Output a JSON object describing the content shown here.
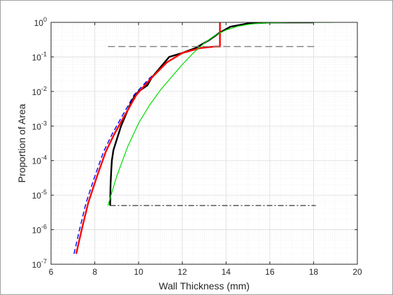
{
  "chart_data": {
    "type": "line",
    "title": "",
    "xlabel": "Wall Thickness (mm)",
    "ylabel": "Proportion of Area",
    "xlim": [
      6,
      20
    ],
    "ylim_log10": [
      -7,
      0
    ],
    "yscale": "log",
    "grid": true,
    "minor_grid": true,
    "legend": "none",
    "x_ticks": [
      "6",
      "8",
      "10",
      "12",
      "14",
      "16",
      "18",
      "20"
    ],
    "y_tick_bases": [
      "10",
      "10",
      "10",
      "10",
      "10",
      "10",
      "10",
      "10"
    ],
    "y_tick_exponents": [
      "-7",
      "-6",
      "-5",
      "-4",
      "-3",
      "-2",
      "-1",
      "0"
    ],
    "series": [
      {
        "color": "#0000ff",
        "style": "dashed",
        "points": [
          [
            7.05,
            2e-07
          ],
          [
            7.3,
            1e-06
          ],
          [
            7.6,
            6e-06
          ],
          [
            8.0,
            3.5e-05
          ],
          [
            8.4,
            0.00018
          ],
          [
            8.8,
            0.0006
          ],
          [
            9.3,
            0.0022
          ],
          [
            9.8,
            0.008
          ],
          [
            10.5,
            0.024
          ],
          [
            11.3,
            0.07
          ],
          [
            12.0,
            0.13
          ],
          [
            12.8,
            0.18
          ],
          [
            13.5,
            0.2
          ],
          [
            13.72,
            0.2
          ]
        ]
      },
      {
        "color": "#000000",
        "style": "thick",
        "points": [
          [
            8.7,
            5e-06
          ],
          [
            8.72,
            2e-05
          ],
          [
            8.75,
            5e-05
          ],
          [
            8.78,
            0.0001
          ],
          [
            8.85,
            0.0002
          ],
          [
            9.0,
            0.0004
          ],
          [
            9.2,
            0.001
          ],
          [
            9.4,
            0.002
          ],
          [
            9.6,
            0.004
          ],
          [
            9.8,
            0.007
          ],
          [
            10.0,
            0.01
          ],
          [
            10.4,
            0.015
          ],
          [
            10.6,
            0.025
          ],
          [
            11.0,
            0.05
          ],
          [
            11.4,
            0.1
          ],
          [
            12.0,
            0.13
          ],
          [
            12.6,
            0.18
          ],
          [
            13.2,
            0.3
          ],
          [
            13.7,
            0.5
          ],
          [
            14.2,
            0.75
          ],
          [
            15.0,
            0.93
          ],
          [
            16.0,
            0.99
          ],
          [
            18.0,
            1.0
          ]
        ]
      },
      {
        "color": "#ff0000",
        "style": "thick",
        "points": [
          [
            7.15,
            2e-07
          ],
          [
            7.4,
            1e-06
          ],
          [
            7.7,
            6e-06
          ],
          [
            8.1,
            3.5e-05
          ],
          [
            8.5,
            0.00018
          ],
          [
            8.9,
            0.0006
          ],
          [
            9.4,
            0.0022
          ],
          [
            9.9,
            0.008
          ],
          [
            10.6,
            0.025
          ],
          [
            11.3,
            0.07
          ],
          [
            12.0,
            0.13
          ],
          [
            12.8,
            0.18
          ],
          [
            13.5,
            0.2
          ],
          [
            13.72,
            0.2
          ],
          [
            13.72,
            1.0
          ]
        ]
      },
      {
        "color": "#00dd00",
        "style": "solid",
        "points": [
          [
            8.6,
            5e-06
          ],
          [
            9.0,
            3.5e-05
          ],
          [
            9.5,
            0.00025
          ],
          [
            10.0,
            0.0012
          ],
          [
            10.5,
            0.004
          ],
          [
            11.0,
            0.011
          ],
          [
            11.5,
            0.026
          ],
          [
            12.0,
            0.06
          ],
          [
            12.5,
            0.13
          ],
          [
            13.0,
            0.25
          ],
          [
            13.5,
            0.42
          ],
          [
            14.0,
            0.6
          ],
          [
            14.5,
            0.76
          ],
          [
            15.0,
            0.87
          ],
          [
            15.5,
            0.94
          ],
          [
            16.0,
            0.97
          ],
          [
            17.0,
            0.995
          ],
          [
            18.0,
            1.0
          ],
          [
            18.9,
            1.0
          ]
        ]
      },
      {
        "color": "#7f7f7f",
        "style": "dashed",
        "points": [
          [
            8.6,
            0.2
          ],
          [
            18.1,
            0.2
          ]
        ]
      },
      {
        "color": "#000000",
        "style": "dashdot",
        "points": [
          [
            8.7,
            5e-06
          ],
          [
            18.1,
            5e-06
          ]
        ]
      }
    ]
  }
}
